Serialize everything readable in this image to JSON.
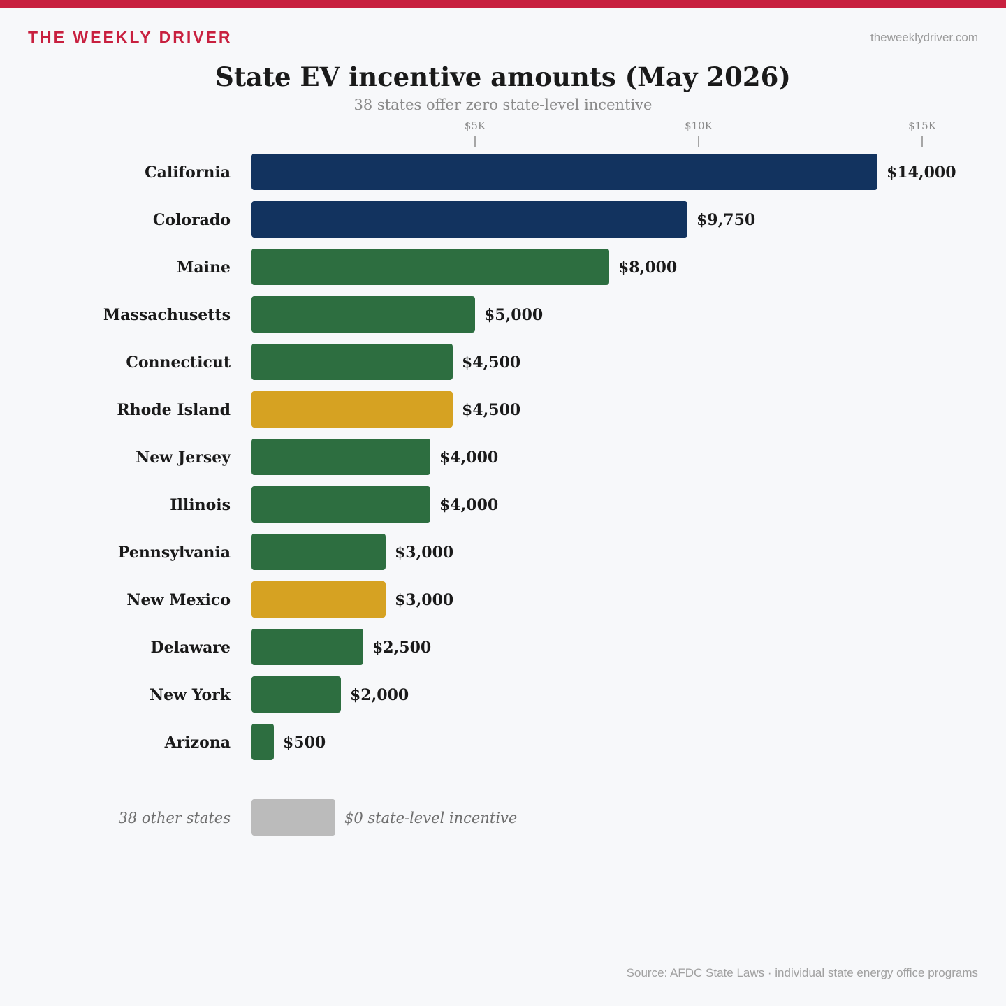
{
  "header": {
    "brand": "THE WEEKLY DRIVER",
    "site": "theweeklydriver.com"
  },
  "colors": {
    "accent": "#c8203f",
    "navy": "#12335f",
    "green": "#2d6e40",
    "gold": "#d6a222",
    "gray": "#bbbbbb",
    "background": "#f7f8fa"
  },
  "chart_data": {
    "type": "bar",
    "orientation": "horizontal",
    "title": "State EV incentive amounts (May 2026)",
    "subtitle": "38 states offer zero state-level incentive",
    "xlim": [
      0,
      15000
    ],
    "ticks": [
      {
        "value": 5000,
        "label": "$5K"
      },
      {
        "value": 10000,
        "label": "$10K"
      },
      {
        "value": 15000,
        "label": "$15K"
      }
    ],
    "grid": false,
    "legend": "none",
    "categories": [
      "California",
      "Colorado",
      "Maine",
      "Massachusetts",
      "Connecticut",
      "Rhode Island",
      "New Jersey",
      "Illinois",
      "Pennsylvania",
      "New Mexico",
      "Delaware",
      "New York",
      "Arizona"
    ],
    "values": [
      14000,
      9750,
      8000,
      5000,
      4500,
      4500,
      4000,
      4000,
      3000,
      3000,
      2500,
      2000,
      500
    ],
    "labels": [
      "$14,000",
      "$9,750",
      "$8,000",
      "$5,000",
      "$4,500",
      "$4,500",
      "$4,000",
      "$4,000",
      "$3,000",
      "$3,000",
      "$2,500",
      "$2,000",
      "$500"
    ],
    "bar_colors": [
      "#12335f",
      "#12335f",
      "#2d6e40",
      "#2d6e40",
      "#2d6e40",
      "#d6a222",
      "#2d6e40",
      "#2d6e40",
      "#2d6e40",
      "#d6a222",
      "#2d6e40",
      "#2d6e40",
      "#2d6e40"
    ],
    "extra_row": {
      "label": "38 other states",
      "value": 0,
      "note": "$0 state-level incentive",
      "color": "#bbbbbb"
    }
  },
  "footer": {
    "source": "Source: AFDC State Laws · individual state energy office programs"
  }
}
